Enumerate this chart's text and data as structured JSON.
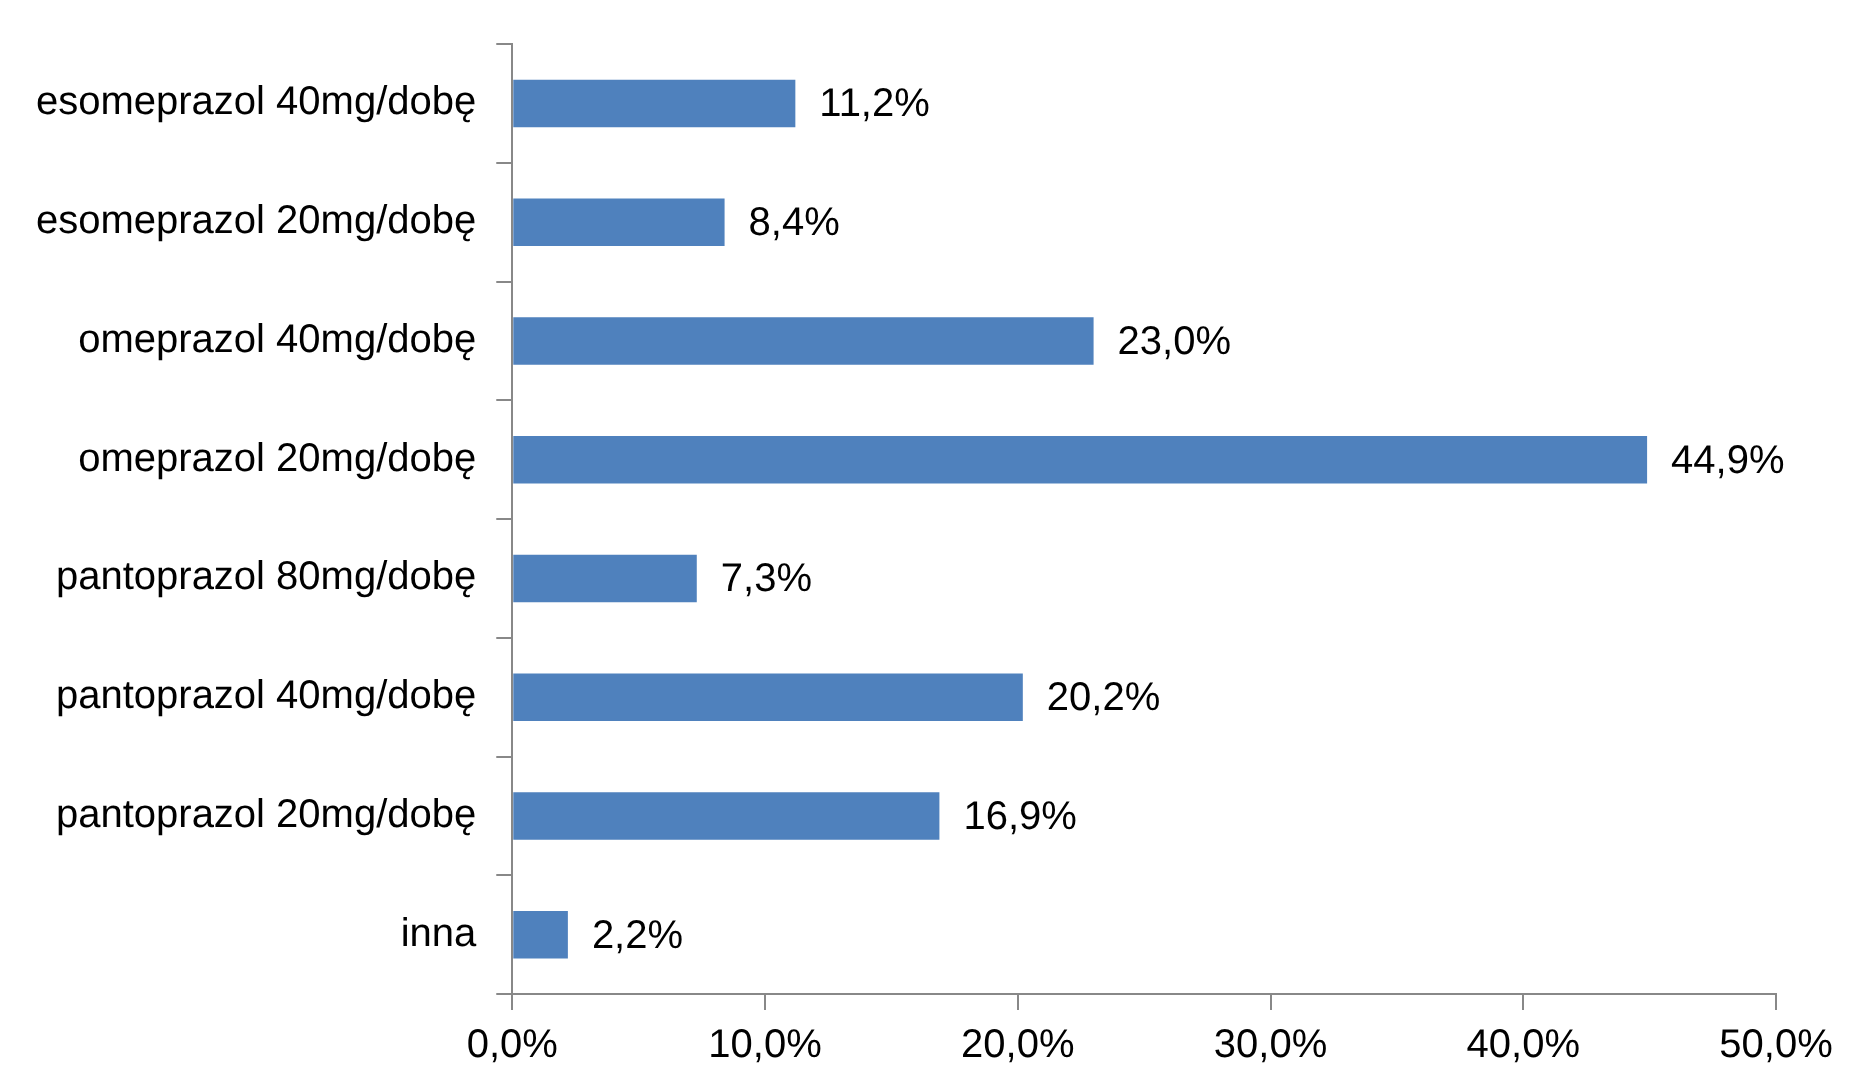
{
  "chart_data": {
    "type": "bar",
    "orientation": "horizontal",
    "categories": [
      "esomeprazol 40mg/dobę",
      "esomeprazol 20mg/dobę",
      "omeprazol 40mg/dobę",
      "omeprazol 20mg/dobę",
      "pantoprazol 80mg/dobę",
      "pantoprazol 40mg/dobę",
      "pantoprazol 20mg/dobę",
      "inna"
    ],
    "values": [
      11.2,
      8.4,
      23.0,
      44.9,
      7.3,
      20.2,
      16.9,
      2.2
    ],
    "value_labels": [
      "11,2%",
      "8,4%",
      "23,0%",
      "44,9%",
      "7,3%",
      "20,2%",
      "16,9%",
      "2,2%"
    ],
    "color": "#4f81bd",
    "xlim": [
      0,
      50
    ],
    "xticks": [
      {
        "value": 0,
        "label": "0,0%"
      },
      {
        "value": 10,
        "label": "10,0%"
      },
      {
        "value": 20,
        "label": "20,0%"
      },
      {
        "value": 30,
        "label": "30,0%"
      },
      {
        "value": 40,
        "label": "40,0%"
      },
      {
        "value": 50,
        "label": "50,0%"
      }
    ],
    "grid": false,
    "legend": false
  }
}
